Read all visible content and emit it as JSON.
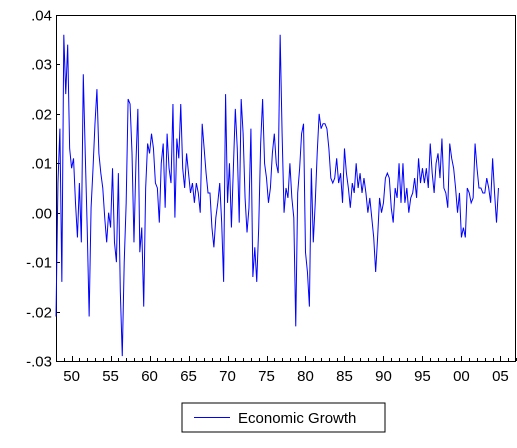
{
  "chart_data": {
    "type": "line",
    "title": "",
    "xlabel": "",
    "ylabel": "",
    "x_start_year": 1948.0,
    "x_step_years": 0.25,
    "xlim": [
      1948.0,
      2007.0
    ],
    "ylim": [
      -0.03,
      0.04
    ],
    "x_ticks": [
      1950,
      1955,
      1960,
      1965,
      1970,
      1975,
      1980,
      1985,
      1990,
      1995,
      2000,
      2005
    ],
    "x_tick_labels": [
      "50",
      "55",
      "60",
      "65",
      "70",
      "75",
      "80",
      "85",
      "90",
      "95",
      "00",
      "05"
    ],
    "y_ticks": [
      -0.03,
      -0.02,
      -0.01,
      0.0,
      0.01,
      0.02,
      0.03,
      0.04
    ],
    "y_tick_labels": [
      "-.03",
      "-.02",
      "-.01",
      ".00",
      ".01",
      ".02",
      ".03",
      ".04"
    ],
    "grid": false,
    "legend_position": "bottom-center",
    "series": [
      {
        "name": "Economic Growth",
        "color": "#0000ff",
        "values": [
          -0.021,
          0.006,
          0.017,
          -0.014,
          0.036,
          0.024,
          0.034,
          0.013,
          0.009,
          0.011,
          0.002,
          -0.005,
          0.006,
          -0.006,
          0.028,
          0.012,
          -0.003,
          -0.021,
          0.001,
          0.009,
          0.018,
          0.025,
          0.012,
          0.008,
          0.005,
          -0.001,
          -0.006,
          0.0,
          -0.003,
          0.009,
          -0.006,
          -0.01,
          0.008,
          -0.016,
          -0.029,
          -0.01,
          0.002,
          0.023,
          0.022,
          0.012,
          -0.006,
          0.01,
          0.021,
          -0.008,
          -0.003,
          -0.019,
          0.005,
          0.014,
          0.012,
          0.016,
          0.013,
          0.006,
          0.005,
          -0.002,
          0.01,
          0.014,
          0.001,
          0.016,
          0.009,
          0.006,
          0.022,
          -0.001,
          0.015,
          0.011,
          0.022,
          0.009,
          0.005,
          0.012,
          0.008,
          0.004,
          0.006,
          0.002,
          0.006,
          0.004,
          0.0,
          0.018,
          0.013,
          0.008,
          0.004,
          0.004,
          -0.003,
          -0.007,
          -0.001,
          0.002,
          0.006,
          -0.002,
          -0.014,
          0.024,
          0.002,
          0.01,
          -0.003,
          0.009,
          0.021,
          0.013,
          -0.002,
          0.023,
          0.016,
          0.003,
          -0.004,
          0.001,
          0.017,
          -0.013,
          -0.007,
          -0.014,
          -0.003,
          0.014,
          0.023,
          0.01,
          0.007,
          0.002,
          0.005,
          0.012,
          0.016,
          0.01,
          0.008,
          0.036,
          0.016,
          0.0,
          0.005,
          0.003,
          0.01,
          0.003,
          -0.001,
          -0.023,
          0.004,
          0.009,
          0.016,
          0.018,
          -0.008,
          -0.012,
          -0.019,
          0.009,
          -0.006,
          0.002,
          0.012,
          0.02,
          0.017,
          0.018,
          0.018,
          0.017,
          0.013,
          0.007,
          0.006,
          0.007,
          0.011,
          0.006,
          0.008,
          0.002,
          0.013,
          0.008,
          0.005,
          0.001,
          0.006,
          0.004,
          0.01,
          0.005,
          0.008,
          0.004,
          0.007,
          0.004,
          0.0,
          0.003,
          -0.001,
          -0.005,
          -0.012,
          -0.005,
          0.003,
          0.0,
          0.002,
          0.007,
          0.008,
          0.007,
          0.001,
          -0.002,
          0.005,
          0.003,
          0.01,
          0.002,
          0.01,
          0.002,
          0.005,
          0.0,
          0.003,
          0.004,
          0.007,
          0.003,
          0.011,
          0.006,
          0.009,
          0.006,
          0.009,
          0.005,
          0.014,
          0.008,
          0.004,
          0.01,
          0.012,
          0.007,
          0.015,
          0.005,
          0.004,
          0.001,
          0.014,
          0.011,
          0.009,
          0.005,
          0.0,
          0.004,
          -0.005,
          -0.003,
          -0.005,
          0.005,
          0.004,
          0.002,
          0.003,
          0.014,
          0.009,
          0.005,
          0.005,
          0.004,
          0.004,
          0.007,
          0.005,
          0.002,
          0.011,
          0.004,
          -0.002,
          0.005
        ]
      }
    ]
  }
}
